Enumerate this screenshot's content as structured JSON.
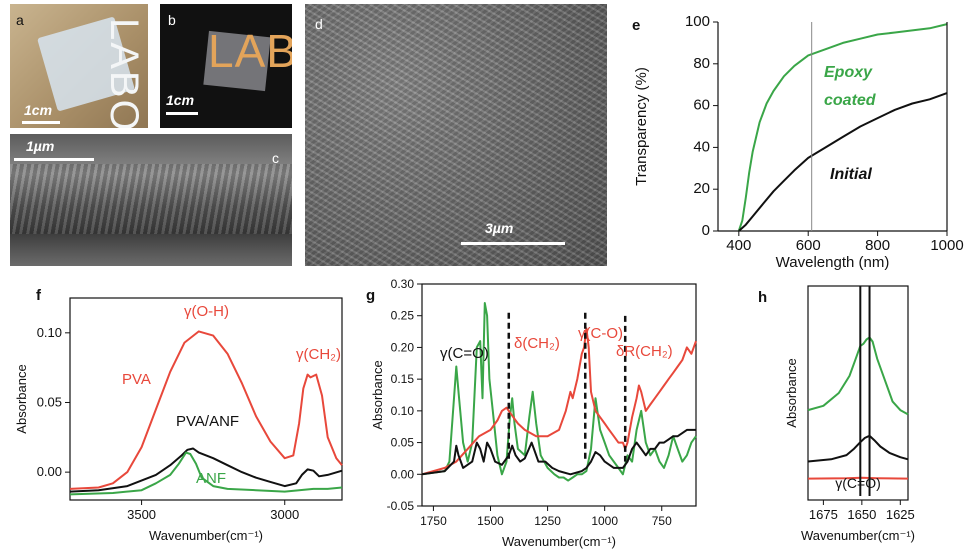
{
  "panels": {
    "a": {
      "label": "a",
      "scale": "1cm",
      "logo_text": "LABO"
    },
    "b": {
      "label": "b",
      "scale": "1cm",
      "logo_text": "LABO"
    },
    "c": {
      "label": "c",
      "scale": "1µm"
    },
    "d": {
      "label": "d",
      "scale": "3µm"
    }
  },
  "colors": {
    "green": "#3aa648",
    "black": "#111111",
    "red": "#e8483b"
  },
  "chart_data": [
    {
      "id": "e",
      "label": "e",
      "type": "line",
      "xlabel": "Wavelength (nm)",
      "ylabel": "Transparency (%)",
      "xlim": [
        340,
        1000
      ],
      "ylim": [
        0,
        100
      ],
      "xticks": [
        400,
        600,
        800,
        1000
      ],
      "yticks": [
        0,
        20,
        40,
        60,
        80,
        100
      ],
      "vline": 610,
      "series": [
        {
          "name": "Epoxy coated",
          "label_lines": [
            "Epoxy",
            "coated"
          ],
          "color": "#3aa648",
          "x": [
            400,
            410,
            420,
            430,
            440,
            460,
            480,
            500,
            530,
            560,
            600,
            650,
            700,
            750,
            800,
            850,
            900,
            950,
            1000
          ],
          "y": [
            0,
            5,
            16,
            28,
            38,
            52,
            61,
            67,
            74,
            79,
            84,
            87,
            90,
            92,
            94,
            95,
            96,
            97,
            99
          ]
        },
        {
          "name": "Initial",
          "label_lines": [
            "Initial"
          ],
          "color": "#111111",
          "x": [
            400,
            420,
            440,
            470,
            500,
            530,
            560,
            600,
            650,
            700,
            750,
            800,
            850,
            900,
            950,
            1000
          ],
          "y": [
            0,
            3,
            7,
            13,
            19,
            24,
            29,
            35,
            40,
            45,
            50,
            54,
            58,
            61,
            63,
            66
          ]
        }
      ]
    },
    {
      "id": "f",
      "label": "f",
      "type": "line",
      "xlabel": "Wavenumber(cm⁻¹)",
      "ylabel": "Absorbance",
      "xlim": [
        3750,
        2800
      ],
      "ylim": [
        -0.02,
        0.125
      ],
      "xticks": [
        3500,
        3000
      ],
      "yticks": [
        0.0,
        0.05,
        0.1
      ],
      "ytick_labels": [
        "0.00",
        "0.05",
        "0.10"
      ],
      "series": [
        {
          "name": "PVA",
          "color": "#e8483b",
          "x": [
            3750,
            3650,
            3600,
            3550,
            3500,
            3450,
            3400,
            3350,
            3300,
            3250,
            3200,
            3150,
            3100,
            3050,
            3000,
            2970,
            2950,
            2935,
            2920,
            2910,
            2890,
            2870,
            2850,
            2820,
            2800
          ],
          "y": [
            -0.012,
            -0.011,
            -0.008,
            0.0,
            0.018,
            0.045,
            0.072,
            0.093,
            0.101,
            0.098,
            0.085,
            0.064,
            0.04,
            0.022,
            0.01,
            0.012,
            0.035,
            0.06,
            0.07,
            0.068,
            0.07,
            0.055,
            0.025,
            0.01,
            0.005
          ]
        },
        {
          "name": "PVA/ANF",
          "color": "#111111",
          "x": [
            3750,
            3650,
            3550,
            3450,
            3400,
            3360,
            3340,
            3320,
            3300,
            3250,
            3200,
            3150,
            3100,
            3050,
            3000,
            2960,
            2940,
            2920,
            2900,
            2880,
            2850,
            2800
          ],
          "y": [
            -0.014,
            -0.013,
            -0.01,
            -0.002,
            0.005,
            0.012,
            0.016,
            0.017,
            0.014,
            0.01,
            0.005,
            0.0,
            -0.004,
            -0.007,
            -0.01,
            -0.008,
            -0.002,
            0.002,
            0.001,
            -0.003,
            -0.002,
            0.001
          ]
        },
        {
          "name": "ANF",
          "color": "#3aa648",
          "x": [
            3750,
            3600,
            3500,
            3450,
            3400,
            3370,
            3345,
            3330,
            3310,
            3290,
            3250,
            3200,
            3100,
            3000,
            2950,
            2900,
            2850,
            2800
          ],
          "y": [
            -0.016,
            -0.015,
            -0.013,
            -0.008,
            -0.002,
            0.006,
            0.014,
            0.013,
            0.006,
            -0.004,
            -0.01,
            -0.012,
            -0.013,
            -0.014,
            -0.013,
            -0.012,
            -0.012,
            -0.011
          ]
        }
      ],
      "annotations": [
        {
          "text": "γ(O-H)",
          "color": "#e8483b"
        },
        {
          "text": "γ(CH₂)",
          "color": "#e8483b"
        },
        {
          "text": "PVA",
          "color": "#e8483b"
        },
        {
          "text": "PVA/ANF",
          "color": "#111111"
        },
        {
          "text": "ANF",
          "color": "#3aa648"
        }
      ]
    },
    {
      "id": "g",
      "label": "g",
      "type": "line",
      "xlabel": "Wavenumber(cm⁻¹)",
      "ylabel": "Absorbance",
      "xlim": [
        1800,
        600
      ],
      "ylim": [
        -0.05,
        0.3
      ],
      "xticks": [
        1750,
        1500,
        1250,
        1000,
        750
      ],
      "yticks": [
        -0.05,
        0.0,
        0.05,
        0.1,
        0.15,
        0.2,
        0.25,
        0.3
      ],
      "ytick_labels": [
        "-0.05",
        "0.00",
        "0.05",
        "0.10",
        "0.15",
        "0.20",
        "0.25",
        "0.30"
      ],
      "dashed_x": [
        1420,
        1085,
        910
      ],
      "series": [
        {
          "name": "green",
          "color": "#3aa648",
          "x": [
            1800,
            1700,
            1680,
            1660,
            1650,
            1640,
            1620,
            1600,
            1580,
            1560,
            1545,
            1535,
            1525,
            1515,
            1505,
            1490,
            1470,
            1450,
            1430,
            1415,
            1405,
            1395,
            1380,
            1350,
            1330,
            1315,
            1300,
            1280,
            1250,
            1220,
            1200,
            1180,
            1160,
            1140,
            1120,
            1100,
            1080,
            1060,
            1040,
            1020,
            1000,
            980,
            960,
            940,
            920,
            900,
            880,
            860,
            840,
            820,
            800,
            780,
            760,
            740,
            720,
            700,
            680,
            660,
            640,
            620,
            600
          ],
          "y": [
            0.0,
            0.005,
            0.02,
            0.12,
            0.17,
            0.13,
            0.05,
            0.02,
            0.05,
            0.2,
            0.21,
            0.12,
            0.27,
            0.25,
            0.15,
            0.1,
            0.03,
            0.0,
            0.02,
            0.09,
            0.12,
            0.08,
            0.04,
            0.03,
            0.09,
            0.13,
            0.08,
            0.03,
            0.01,
            0.0,
            -0.005,
            -0.005,
            -0.01,
            -0.005,
            0.0,
            0.0,
            0.005,
            0.04,
            0.12,
            0.07,
            0.05,
            0.03,
            0.02,
            0.01,
            0.0,
            0.03,
            0.02,
            0.07,
            0.1,
            0.05,
            0.03,
            0.04,
            0.02,
            0.01,
            0.03,
            0.06,
            0.04,
            0.02,
            0.03,
            0.05,
            0.06
          ]
        },
        {
          "name": "red",
          "color": "#e8483b",
          "x": [
            1800,
            1750,
            1700,
            1650,
            1600,
            1550,
            1500,
            1470,
            1450,
            1430,
            1420,
            1400,
            1380,
            1350,
            1300,
            1250,
            1200,
            1170,
            1150,
            1140,
            1120,
            1100,
            1090,
            1080,
            1070,
            1060,
            1040,
            1020,
            1000,
            980,
            960,
            940,
            920,
            910,
            900,
            880,
            860,
            850,
            840,
            820,
            800,
            780,
            760,
            740,
            720,
            700,
            680,
            660,
            640,
            620,
            600
          ],
          "y": [
            0.0,
            0.005,
            0.01,
            0.02,
            0.04,
            0.06,
            0.07,
            0.085,
            0.1,
            0.105,
            0.1,
            0.09,
            0.08,
            0.07,
            0.06,
            0.06,
            0.07,
            0.1,
            0.13,
            0.12,
            0.15,
            0.19,
            0.2,
            0.23,
            0.2,
            0.13,
            0.1,
            0.09,
            0.08,
            0.07,
            0.06,
            0.05,
            0.05,
            0.04,
            0.05,
            0.09,
            0.12,
            0.14,
            0.13,
            0.1,
            0.11,
            0.12,
            0.13,
            0.14,
            0.15,
            0.16,
            0.17,
            0.18,
            0.2,
            0.19,
            0.21
          ]
        },
        {
          "name": "black",
          "color": "#111111",
          "x": [
            1800,
            1700,
            1660,
            1650,
            1640,
            1620,
            1580,
            1560,
            1545,
            1530,
            1515,
            1500,
            1480,
            1450,
            1420,
            1405,
            1390,
            1370,
            1350,
            1320,
            1310,
            1290,
            1260,
            1230,
            1200,
            1150,
            1100,
            1080,
            1060,
            1040,
            1020,
            1000,
            960,
            920,
            900,
            880,
            860,
            840,
            820,
            800,
            780,
            760,
            740,
            720,
            700,
            680,
            660,
            640,
            620,
            600
          ],
          "y": [
            0.0,
            0.005,
            0.02,
            0.045,
            0.03,
            0.01,
            0.02,
            0.05,
            0.04,
            0.02,
            0.05,
            0.04,
            0.02,
            0.015,
            0.03,
            0.045,
            0.03,
            0.02,
            0.025,
            0.05,
            0.04,
            0.02,
            0.02,
            0.01,
            0.005,
            0.0,
            0.005,
            0.01,
            0.02,
            0.035,
            0.03,
            0.02,
            0.01,
            0.01,
            0.02,
            0.04,
            0.05,
            0.04,
            0.03,
            0.04,
            0.04,
            0.05,
            0.05,
            0.055,
            0.06,
            0.06,
            0.065,
            0.07,
            0.07,
            0.07
          ]
        }
      ],
      "annotations": [
        {
          "text": "γ(C=O)",
          "color": "#111111"
        },
        {
          "text": "δ(CH₂)",
          "color": "#e8483b"
        },
        {
          "text": "γ(C-O)",
          "color": "#e8483b"
        },
        {
          "text": "δR(CH₂)",
          "color": "#e8483b"
        }
      ]
    },
    {
      "id": "h",
      "label": "h",
      "type": "line",
      "xlabel": "Wavenumber(cm⁻¹)",
      "ylabel": "Absorbance",
      "xlim": [
        1685,
        1620
      ],
      "ylim": [
        0,
        1
      ],
      "xticks": [
        1675,
        1650,
        1625
      ],
      "vlines": [
        1651,
        1645
      ],
      "series": [
        {
          "name": "green",
          "color": "#3aa648",
          "x": [
            1685,
            1675,
            1665,
            1658,
            1654,
            1651,
            1649,
            1647,
            1645,
            1643,
            1640,
            1635,
            1630,
            1625,
            1620
          ],
          "y": [
            0.42,
            0.44,
            0.5,
            0.58,
            0.66,
            0.72,
            0.73,
            0.75,
            0.76,
            0.74,
            0.66,
            0.56,
            0.46,
            0.42,
            0.4
          ]
        },
        {
          "name": "black",
          "color": "#111111",
          "x": [
            1685,
            1670,
            1660,
            1655,
            1651,
            1648,
            1645,
            1642,
            1638,
            1632,
            1625,
            1620
          ],
          "y": [
            0.18,
            0.19,
            0.21,
            0.24,
            0.27,
            0.29,
            0.3,
            0.28,
            0.25,
            0.22,
            0.2,
            0.19
          ]
        },
        {
          "name": "red",
          "color": "#e8483b",
          "x": [
            1685,
            1660,
            1650,
            1640,
            1620
          ],
          "y": [
            0.1,
            0.102,
            0.104,
            0.102,
            0.1
          ]
        }
      ],
      "annotations": [
        {
          "text": "γ(C=O)",
          "color": "#111111"
        }
      ]
    }
  ]
}
